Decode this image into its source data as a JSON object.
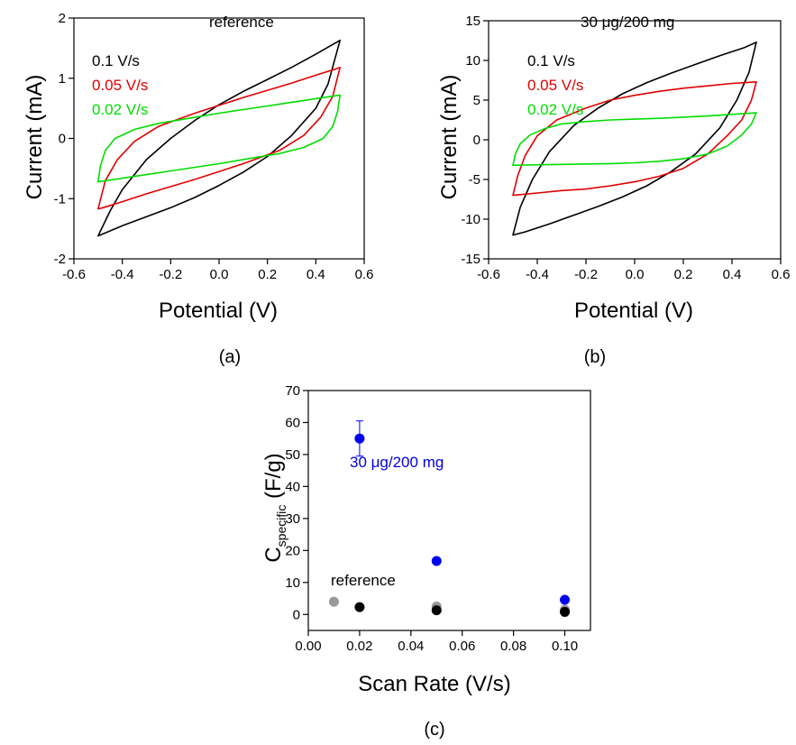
{
  "figure": {
    "panel_labels": [
      "(a)",
      "(b)",
      "(c)"
    ]
  },
  "chart_data": [
    {
      "id": "a",
      "type": "line",
      "title": "reference",
      "xlabel": "Potential (V)",
      "ylabel": "Current (mA)",
      "xlim": [
        -0.6,
        0.6
      ],
      "ylim": [
        -2,
        2
      ],
      "xticks": [
        "-0.6",
        "-0.4",
        "-0.2",
        "0.0",
        "0.2",
        "0.4",
        "0.6"
      ],
      "yticks": [
        "-2",
        "-1",
        "0",
        "1",
        "2"
      ],
      "legend": {
        "placement": "top-left"
      },
      "series": [
        {
          "name": "0.1 V/s",
          "color": "#000000",
          "upper": [
            [
              -0.5,
              -1.62
            ],
            [
              -0.45,
              -1.2
            ],
            [
              -0.4,
              -0.85
            ],
            [
              -0.3,
              -0.35
            ],
            [
              -0.2,
              0.0
            ],
            [
              -0.1,
              0.3
            ],
            [
              0.0,
              0.56
            ],
            [
              0.1,
              0.78
            ],
            [
              0.2,
              0.98
            ],
            [
              0.3,
              1.18
            ],
            [
              0.4,
              1.4
            ],
            [
              0.5,
              1.63
            ]
          ],
          "lower": [
            [
              -0.5,
              -1.62
            ],
            [
              -0.4,
              -1.45
            ],
            [
              -0.3,
              -1.3
            ],
            [
              -0.2,
              -1.15
            ],
            [
              -0.1,
              -0.98
            ],
            [
              0.0,
              -0.78
            ],
            [
              0.1,
              -0.56
            ],
            [
              0.2,
              -0.3
            ],
            [
              0.3,
              0.05
            ],
            [
              0.4,
              0.5
            ],
            [
              0.45,
              0.9
            ],
            [
              0.5,
              1.63
            ]
          ]
        },
        {
          "name": "0.05 V/s",
          "color": "#e00000",
          "upper": [
            [
              -0.5,
              -1.17
            ],
            [
              -0.47,
              -0.7
            ],
            [
              -0.42,
              -0.35
            ],
            [
              -0.35,
              -0.05
            ],
            [
              -0.25,
              0.2
            ],
            [
              -0.1,
              0.42
            ],
            [
              0.0,
              0.55
            ],
            [
              0.1,
              0.68
            ],
            [
              0.2,
              0.8
            ],
            [
              0.3,
              0.92
            ],
            [
              0.4,
              1.05
            ],
            [
              0.48,
              1.15
            ],
            [
              0.5,
              1.18
            ]
          ],
          "lower": [
            [
              -0.5,
              -1.17
            ],
            [
              -0.48,
              -1.15
            ],
            [
              -0.4,
              -1.05
            ],
            [
              -0.3,
              -0.92
            ],
            [
              -0.2,
              -0.8
            ],
            [
              -0.1,
              -0.68
            ],
            [
              0.0,
              -0.55
            ],
            [
              0.1,
              -0.42
            ],
            [
              0.25,
              -0.2
            ],
            [
              0.35,
              0.05
            ],
            [
              0.42,
              0.35
            ],
            [
              0.47,
              0.7
            ],
            [
              0.5,
              1.18
            ]
          ]
        },
        {
          "name": "0.02 V/s",
          "color": "#00dd00",
          "upper": [
            [
              -0.5,
              -0.72
            ],
            [
              -0.49,
              -0.45
            ],
            [
              -0.47,
              -0.2
            ],
            [
              -0.43,
              0.0
            ],
            [
              -0.35,
              0.15
            ],
            [
              -0.25,
              0.25
            ],
            [
              -0.1,
              0.35
            ],
            [
              0.0,
              0.42
            ],
            [
              0.1,
              0.48
            ],
            [
              0.2,
              0.54
            ],
            [
              0.3,
              0.6
            ],
            [
              0.4,
              0.66
            ],
            [
              0.45,
              0.69
            ],
            [
              0.5,
              0.72
            ]
          ],
          "lower": [
            [
              -0.5,
              -0.72
            ],
            [
              -0.45,
              -0.69
            ],
            [
              -0.4,
              -0.66
            ],
            [
              -0.3,
              -0.6
            ],
            [
              -0.2,
              -0.54
            ],
            [
              -0.1,
              -0.48
            ],
            [
              0.0,
              -0.42
            ],
            [
              0.1,
              -0.35
            ],
            [
              0.25,
              -0.25
            ],
            [
              0.35,
              -0.15
            ],
            [
              0.43,
              0.0
            ],
            [
              0.47,
              0.2
            ],
            [
              0.49,
              0.45
            ],
            [
              0.5,
              0.72
            ]
          ]
        }
      ]
    },
    {
      "id": "b",
      "type": "line",
      "title": "30 μg/200 mg",
      "xlabel": "Potential (V)",
      "ylabel": "Current (mA)",
      "xlim": [
        -0.6,
        0.6
      ],
      "ylim": [
        -15,
        15
      ],
      "xticks": [
        "-0.6",
        "-0.4",
        "-0.2",
        "0.0",
        "0.2",
        "0.4",
        "0.6"
      ],
      "yticks": [
        "-15",
        "-10",
        "-5",
        "0",
        "5",
        "10",
        "15"
      ],
      "legend": {
        "placement": "top-left"
      },
      "series": [
        {
          "name": "0.1 V/s",
          "color": "#000000",
          "upper": [
            [
              -0.5,
              -12.0
            ],
            [
              -0.47,
              -8.5
            ],
            [
              -0.42,
              -5.0
            ],
            [
              -0.35,
              -1.5
            ],
            [
              -0.25,
              1.8
            ],
            [
              -0.15,
              4.0
            ],
            [
              -0.05,
              5.8
            ],
            [
              0.05,
              7.2
            ],
            [
              0.15,
              8.4
            ],
            [
              0.25,
              9.5
            ],
            [
              0.35,
              10.6
            ],
            [
              0.45,
              11.6
            ],
            [
              0.5,
              12.3
            ]
          ],
          "lower": [
            [
              -0.5,
              -12.0
            ],
            [
              -0.45,
              -11.6
            ],
            [
              -0.35,
              -10.6
            ],
            [
              -0.25,
              -9.5
            ],
            [
              -0.15,
              -8.4
            ],
            [
              -0.05,
              -7.2
            ],
            [
              0.05,
              -5.8
            ],
            [
              0.15,
              -4.0
            ],
            [
              0.25,
              -1.8
            ],
            [
              0.35,
              1.5
            ],
            [
              0.42,
              5.0
            ],
            [
              0.47,
              8.5
            ],
            [
              0.5,
              12.3
            ]
          ]
        },
        {
          "name": "0.05 V/s",
          "color": "#e00000",
          "upper": [
            [
              -0.5,
              -7.0
            ],
            [
              -0.48,
              -4.5
            ],
            [
              -0.45,
              -2.0
            ],
            [
              -0.4,
              0.5
            ],
            [
              -0.32,
              2.5
            ],
            [
              -0.2,
              4.0
            ],
            [
              -0.1,
              5.0
            ],
            [
              0.0,
              5.6
            ],
            [
              0.1,
              6.1
            ],
            [
              0.2,
              6.5
            ],
            [
              0.3,
              6.8
            ],
            [
              0.4,
              7.1
            ],
            [
              0.5,
              7.3
            ]
          ],
          "lower": [
            [
              -0.5,
              -7.0
            ],
            [
              -0.4,
              -6.7
            ],
            [
              -0.3,
              -6.4
            ],
            [
              -0.2,
              -6.2
            ],
            [
              -0.1,
              -5.8
            ],
            [
              0.0,
              -5.3
            ],
            [
              0.1,
              -4.6
            ],
            [
              0.2,
              -3.6
            ],
            [
              0.3,
              -1.8
            ],
            [
              0.38,
              0.5
            ],
            [
              0.44,
              2.5
            ],
            [
              0.48,
              5.0
            ],
            [
              0.5,
              7.3
            ]
          ]
        },
        {
          "name": "0.02 V/s",
          "color": "#00dd00",
          "upper": [
            [
              -0.5,
              -3.2
            ],
            [
              -0.49,
              -1.8
            ],
            [
              -0.47,
              -0.5
            ],
            [
              -0.43,
              0.6
            ],
            [
              -0.37,
              1.4
            ],
            [
              -0.3,
              2.0
            ],
            [
              -0.2,
              2.3
            ],
            [
              -0.1,
              2.5
            ],
            [
              0.0,
              2.6
            ],
            [
              0.1,
              2.7
            ],
            [
              0.2,
              2.85
            ],
            [
              0.3,
              3.0
            ],
            [
              0.4,
              3.2
            ],
            [
              0.5,
              3.4
            ]
          ],
          "lower": [
            [
              -0.5,
              -3.2
            ],
            [
              -0.4,
              -3.15
            ],
            [
              -0.3,
              -3.1
            ],
            [
              -0.2,
              -3.05
            ],
            [
              -0.1,
              -3.0
            ],
            [
              0.0,
              -2.9
            ],
            [
              0.1,
              -2.7
            ],
            [
              0.2,
              -2.4
            ],
            [
              0.3,
              -1.8
            ],
            [
              0.38,
              -0.8
            ],
            [
              0.44,
              0.6
            ],
            [
              0.48,
              2.0
            ],
            [
              0.5,
              3.4
            ]
          ]
        }
      ]
    },
    {
      "id": "c",
      "type": "scatter",
      "xlabel": "Scan Rate (V/s)",
      "ylabel_main": "C",
      "ylabel_sub": "specific",
      "ylabel_unit": " (F/g)",
      "xlim": [
        0.0,
        0.11
      ],
      "ylim": [
        -5,
        70
      ],
      "xticks": [
        "0.00",
        "0.02",
        "0.04",
        "0.06",
        "0.08",
        "0.10"
      ],
      "yticks": [
        "0",
        "10",
        "20",
        "30",
        "40",
        "50",
        "60",
        "70"
      ],
      "annotations": [
        {
          "text": "30 μg/200 mg",
          "color": "#0000dd"
        },
        {
          "text": "reference",
          "color": "#000000"
        }
      ],
      "series": [
        {
          "name": "30 μg/200 mg",
          "color": "#0000ee",
          "points": [
            [
              0.02,
              55.0
            ],
            [
              0.05,
              16.7
            ],
            [
              0.1,
              4.6
            ]
          ],
          "errors": [
            5.5,
            0.8,
            0.4
          ]
        },
        {
          "name": "reference (grey)",
          "color": "#999999",
          "points": [
            [
              0.01,
              4.0
            ],
            [
              0.05,
              2.5
            ],
            [
              0.1,
              1.5
            ]
          ]
        },
        {
          "name": "reference (black)",
          "color": "#000000",
          "points": [
            [
              0.02,
              2.3
            ],
            [
              0.05,
              1.3
            ],
            [
              0.1,
              0.8
            ]
          ]
        }
      ]
    }
  ]
}
